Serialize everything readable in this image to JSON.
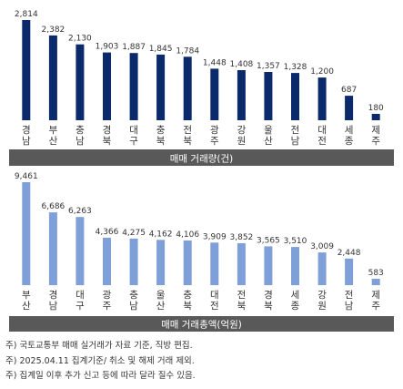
{
  "chart_data": [
    {
      "type": "bar",
      "title": "매매 거래량(건)",
      "categories": [
        "경남",
        "부산",
        "충남",
        "경북",
        "대구",
        "충북",
        "전북",
        "광주",
        "강원",
        "울산",
        "전남",
        "대전",
        "세종",
        "제주"
      ],
      "values": [
        2814,
        2382,
        2130,
        1903,
        1887,
        1845,
        1784,
        1448,
        1408,
        1357,
        1328,
        1200,
        687,
        180
      ],
      "value_labels": [
        "2,814",
        "2,382",
        "2,130",
        "1,903",
        "1,887",
        "1,845",
        "1,784",
        "1,448",
        "1,408",
        "1,357",
        "1,328",
        "1,200",
        "687",
        "180"
      ],
      "ylim": [
        0,
        2814
      ],
      "color": "#0b2a6b",
      "grid": false
    },
    {
      "type": "bar",
      "title": "매매 거래총액(억원)",
      "categories": [
        "부산",
        "경남",
        "대구",
        "광주",
        "충남",
        "울산",
        "충북",
        "대전",
        "전북",
        "경북",
        "세종",
        "강원",
        "전남",
        "제주"
      ],
      "values": [
        9461,
        6686,
        6263,
        4366,
        4275,
        4162,
        4106,
        3909,
        3852,
        3565,
        3510,
        3009,
        2448,
        583
      ],
      "value_labels": [
        "9,461",
        "6,686",
        "6,263",
        "4,366",
        "4,275",
        "4,162",
        "4,106",
        "3,909",
        "3,852",
        "3,565",
        "3,510",
        "3,009",
        "2,448",
        "583"
      ],
      "ylim": [
        0,
        9461
      ],
      "color": "#7f9fd8",
      "grid": false
    }
  ],
  "footnotes": [
    "주) 국토교통부 매매 실거래가 자료 기준, 직방 편집.",
    "주) 2025.04.11 집계기준/ 취소 및 해제 거래 제외.",
    "주) 집계일 이후 추가 신고 등에 따라 달라 질수 있음."
  ],
  "colors": {
    "title_bar": "#595959",
    "title_text": "#ffffff",
    "label_text": "#333333"
  }
}
